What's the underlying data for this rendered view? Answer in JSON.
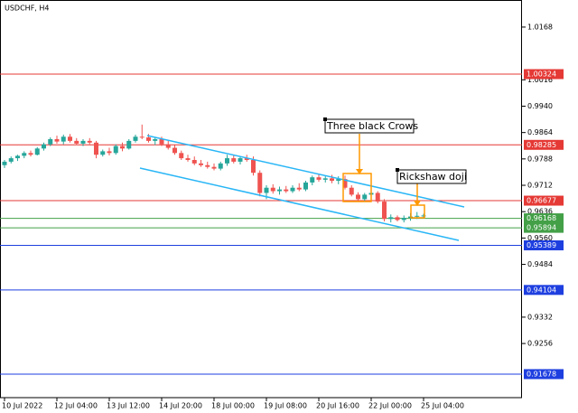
{
  "chart_data": {
    "type": "candlestick",
    "title": "USDCHF, H4",
    "categories": [
      "10 Jul 2022",
      null,
      null,
      null,
      null,
      null,
      null,
      null,
      "12 Jul 04:00",
      null,
      null,
      null,
      null,
      null,
      null,
      null,
      "13 Jul 12:00",
      null,
      null,
      null,
      null,
      null,
      null,
      null,
      "14 Jul 20:00",
      null,
      null,
      null,
      null,
      null,
      null,
      null,
      "18 Jul 00:00",
      null,
      null,
      null,
      null,
      null,
      null,
      null,
      "19 Jul 08:00",
      null,
      null,
      null,
      null,
      null,
      null,
      null,
      "20 Jul 16:00",
      null,
      null,
      null,
      null,
      null,
      null,
      null,
      "22 Jul 00:00",
      null,
      null,
      null,
      null,
      null,
      null,
      null,
      "25 Jul 04:00"
    ],
    "open": [
      0.977,
      0.978,
      0.979,
      0.9797,
      0.9805,
      0.98,
      0.9818,
      0.983,
      0.9845,
      0.9838,
      0.9852,
      0.984,
      0.9832,
      0.984,
      0.9835,
      0.98,
      0.981,
      0.9805,
      0.9825,
      0.9818,
      0.984,
      0.9852,
      0.985,
      0.984,
      0.9845,
      0.983,
      0.982,
      0.9805,
      0.979,
      0.9785,
      0.9775,
      0.977,
      0.9765,
      0.976,
      0.9775,
      0.979,
      0.978,
      0.979,
      0.9785,
      0.9748,
      0.969,
      0.9705,
      0.9695,
      0.97,
      0.9695,
      0.9705,
      0.97,
      0.972,
      0.9735,
      0.9728,
      0.9732,
      0.9725,
      0.973,
      0.9705,
      0.9685,
      0.9672,
      0.9685,
      0.969,
      0.9665,
      0.9615,
      0.962,
      0.9612,
      0.9618,
      0.9622,
      0.9624
    ],
    "high": [
      0.9785,
      0.9795,
      0.98,
      0.981,
      0.9812,
      0.9822,
      0.9835,
      0.985,
      0.9855,
      0.9858,
      0.986,
      0.9848,
      0.9845,
      0.9848,
      0.984,
      0.9815,
      0.982,
      0.983,
      0.9835,
      0.9845,
      0.9858,
      0.9887,
      0.986,
      0.985,
      0.9852,
      0.984,
      0.9828,
      0.9812,
      0.98,
      0.9795,
      0.9785,
      0.978,
      0.9775,
      0.978,
      0.98,
      0.9798,
      0.9795,
      0.98,
      0.9795,
      0.9755,
      0.9712,
      0.9715,
      0.9708,
      0.971,
      0.9712,
      0.9718,
      0.9725,
      0.974,
      0.9745,
      0.9738,
      0.9742,
      0.9738,
      0.974,
      0.9712,
      0.9692,
      0.969,
      0.97,
      0.9695,
      0.9672,
      0.9628,
      0.9625,
      0.9625,
      0.9632,
      0.9635,
      0.963
    ],
    "low": [
      0.9762,
      0.9775,
      0.9782,
      0.979,
      0.9795,
      0.9798,
      0.9812,
      0.9825,
      0.9832,
      0.983,
      0.9835,
      0.9828,
      0.9825,
      0.983,
      0.979,
      0.9795,
      0.9798,
      0.98,
      0.981,
      0.9815,
      0.9835,
      0.9845,
      0.9835,
      0.9828,
      0.9825,
      0.9815,
      0.98,
      0.9785,
      0.978,
      0.977,
      0.9765,
      0.976,
      0.9755,
      0.9755,
      0.9768,
      0.9775,
      0.9772,
      0.978,
      0.974,
      0.968,
      0.9672,
      0.9688,
      0.9685,
      0.969,
      0.969,
      0.9695,
      0.9695,
      0.9712,
      0.9722,
      0.972,
      0.9718,
      0.9715,
      0.97,
      0.968,
      0.9668,
      0.9665,
      0.9675,
      0.966,
      0.9608,
      0.9605,
      0.9608,
      0.9605,
      0.961,
      0.9615,
      0.9618
    ],
    "close": [
      0.978,
      0.979,
      0.9797,
      0.9805,
      0.98,
      0.9818,
      0.983,
      0.9845,
      0.9838,
      0.9852,
      0.984,
      0.9832,
      0.984,
      0.9835,
      0.98,
      0.981,
      0.9805,
      0.9825,
      0.9818,
      0.984,
      0.9852,
      0.985,
      0.984,
      0.9845,
      0.983,
      0.982,
      0.9805,
      0.979,
      0.9785,
      0.9775,
      0.977,
      0.9765,
      0.976,
      0.9775,
      0.979,
      0.978,
      0.979,
      0.9785,
      0.9748,
      0.969,
      0.9705,
      0.9695,
      0.97,
      0.9695,
      0.9705,
      0.97,
      0.972,
      0.9735,
      0.9728,
      0.9732,
      0.9725,
      0.973,
      0.9705,
      0.9685,
      0.9672,
      0.9685,
      0.969,
      0.9665,
      0.9615,
      0.962,
      0.9612,
      0.9618,
      0.9622,
      0.9624,
      0.9625
    ],
    "up_color": "#26a69a",
    "down_color": "#ef5350",
    "ylim": [
      0.91,
      1.0246
    ],
    "yticks": [
      1.0168,
      1.0016,
      {
        "value": 0.994,
        "label": "0.9940"
      },
      0.9864,
      0.9788,
      0.9712,
      0.9636,
      {
        "value": 0.956,
        "label": "0.9560"
      },
      0.9484,
      0.9332,
      0.9256
    ],
    "levels": [
      {
        "value": 1.00324,
        "color": "#e53935"
      },
      {
        "value": 0.98285,
        "color": "#e53935"
      },
      {
        "value": 0.96677,
        "color": "#e53935"
      },
      {
        "value": 0.96168,
        "color": "#43a047"
      },
      {
        "value": 0.95894,
        "color": "#43a047"
      },
      {
        "value": 0.95389,
        "color": "#1e3fe0"
      },
      {
        "value": 0.94104,
        "color": "#1e3fe0"
      },
      {
        "value": 0.91678,
        "color": "#1e3fe0"
      }
    ],
    "annotations": [
      {
        "text": "Three black Crows"
      },
      {
        "text": "Rickshaw doji"
      }
    ]
  }
}
